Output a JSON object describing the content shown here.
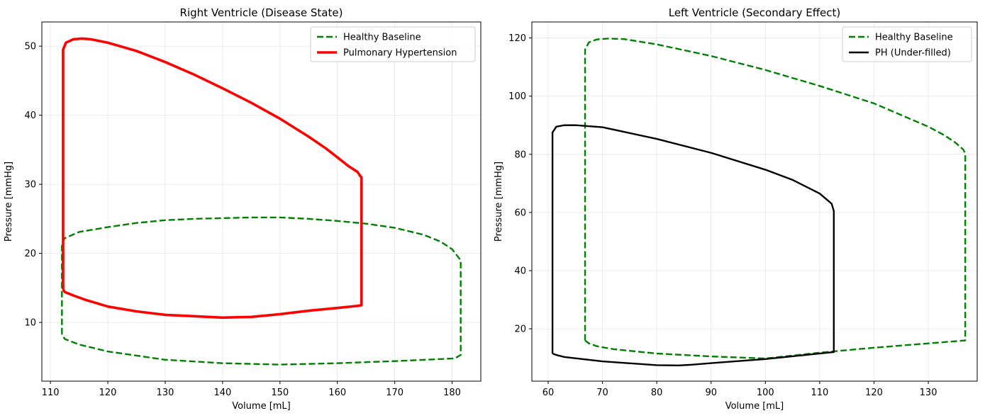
{
  "chart_data": [
    {
      "type": "line",
      "title": "Right Ventricle (Disease State)",
      "xlabel": "Volume [mL]",
      "ylabel": "Pressure [mmHg]",
      "xlim": [
        108.5,
        185
      ],
      "ylim": [
        1.5,
        53.5
      ],
      "xticks": [
        110,
        120,
        130,
        140,
        150,
        160,
        170,
        180
      ],
      "yticks": [
        10,
        20,
        30,
        40,
        50
      ],
      "grid": true,
      "legend_position": "top-right",
      "series": [
        {
          "name": "Healthy Baseline",
          "color": "#008000",
          "style": "dashed",
          "x": [
            112,
            112,
            112.5,
            115,
            120,
            125,
            130,
            135,
            140,
            145,
            150,
            155,
            160,
            165,
            170,
            175,
            178,
            180,
            181.5,
            181.5,
            180.5,
            178,
            170,
            160,
            150,
            140,
            130,
            120,
            115,
            112.5,
            112
          ],
          "y": [
            8.3,
            21.5,
            22.2,
            23.1,
            23.8,
            24.4,
            24.8,
            25,
            25.1,
            25.2,
            25.2,
            25,
            24.7,
            24.3,
            23.7,
            22.7,
            21.7,
            20.6,
            19,
            5.3,
            4.8,
            4.7,
            4.4,
            4.1,
            3.9,
            4.1,
            4.6,
            5.8,
            6.8,
            7.6,
            8.3
          ]
        },
        {
          "name": "Pulmonary Hypertension",
          "color": "#ff0000",
          "style": "solid",
          "x": [
            112.2,
            112.2,
            112.7,
            114,
            115.5,
            117,
            120,
            125,
            130,
            135,
            140,
            145,
            150,
            155,
            158,
            160,
            162,
            163.5,
            164,
            164.2,
            164.2,
            163.5,
            160,
            155,
            150,
            145,
            140,
            135,
            130,
            125,
            120,
            116,
            114,
            112.5,
            112.2
          ],
          "y": [
            14.8,
            49.5,
            50.5,
            51,
            51.1,
            51,
            50.5,
            49.3,
            47.7,
            45.9,
            43.9,
            41.8,
            39.5,
            36.9,
            35.2,
            33.9,
            32.6,
            31.8,
            31.2,
            31,
            12.5,
            12.4,
            12.1,
            11.7,
            11.2,
            10.8,
            10.7,
            10.9,
            11.1,
            11.6,
            12.3,
            13.3,
            13.9,
            14.4,
            14.8
          ]
        }
      ]
    },
    {
      "type": "line",
      "title": "Left Ventricle (Secondary Effect)",
      "xlabel": "Volume [mL]",
      "ylabel": "Pressure [mmHg]",
      "xlim": [
        57,
        139
      ],
      "ylim": [
        2,
        125.5
      ],
      "xticks": [
        60,
        70,
        80,
        90,
        100,
        110,
        120,
        130
      ],
      "yticks": [
        20,
        40,
        60,
        80,
        100,
        120
      ],
      "grid": true,
      "legend_position": "top-right",
      "series": [
        {
          "name": "Healthy Baseline",
          "color": "#008000",
          "style": "dashed",
          "x": [
            66.8,
            66.8,
            67.5,
            69,
            71,
            74,
            80,
            90,
            100,
            110,
            120,
            125,
            130,
            133,
            135,
            136.5,
            136.8,
            136.8,
            120,
            110,
            105,
            100,
            90,
            80,
            72,
            69,
            67.5,
            66.8
          ],
          "y": [
            16,
            116,
            118.5,
            119.5,
            119.8,
            119.6,
            117.8,
            113.8,
            109,
            103.5,
            97.5,
            93.5,
            89.5,
            86.5,
            84,
            81.5,
            80,
            16,
            13.5,
            11.8,
            10.8,
            9.8,
            10.5,
            11.5,
            13,
            14,
            15,
            16
          ]
        },
        {
          "name": "PH (Under-filled)",
          "color": "#000000",
          "style": "solid",
          "x": [
            60.8,
            60.8,
            61.5,
            63,
            65,
            70,
            80,
            90,
            100,
            105,
            110,
            112.2,
            112.6,
            112.6,
            100,
            90,
            86,
            84,
            80,
            70,
            63,
            61.5,
            60.8
          ],
          "y": [
            11.5,
            87.5,
            89.5,
            90,
            90,
            89.3,
            85.3,
            80.5,
            74.7,
            71.2,
            66.5,
            63,
            60.5,
            12,
            9.6,
            8.2,
            7.6,
            7.4,
            7.5,
            8.8,
            10.3,
            11,
            11.5
          ]
        }
      ]
    }
  ]
}
